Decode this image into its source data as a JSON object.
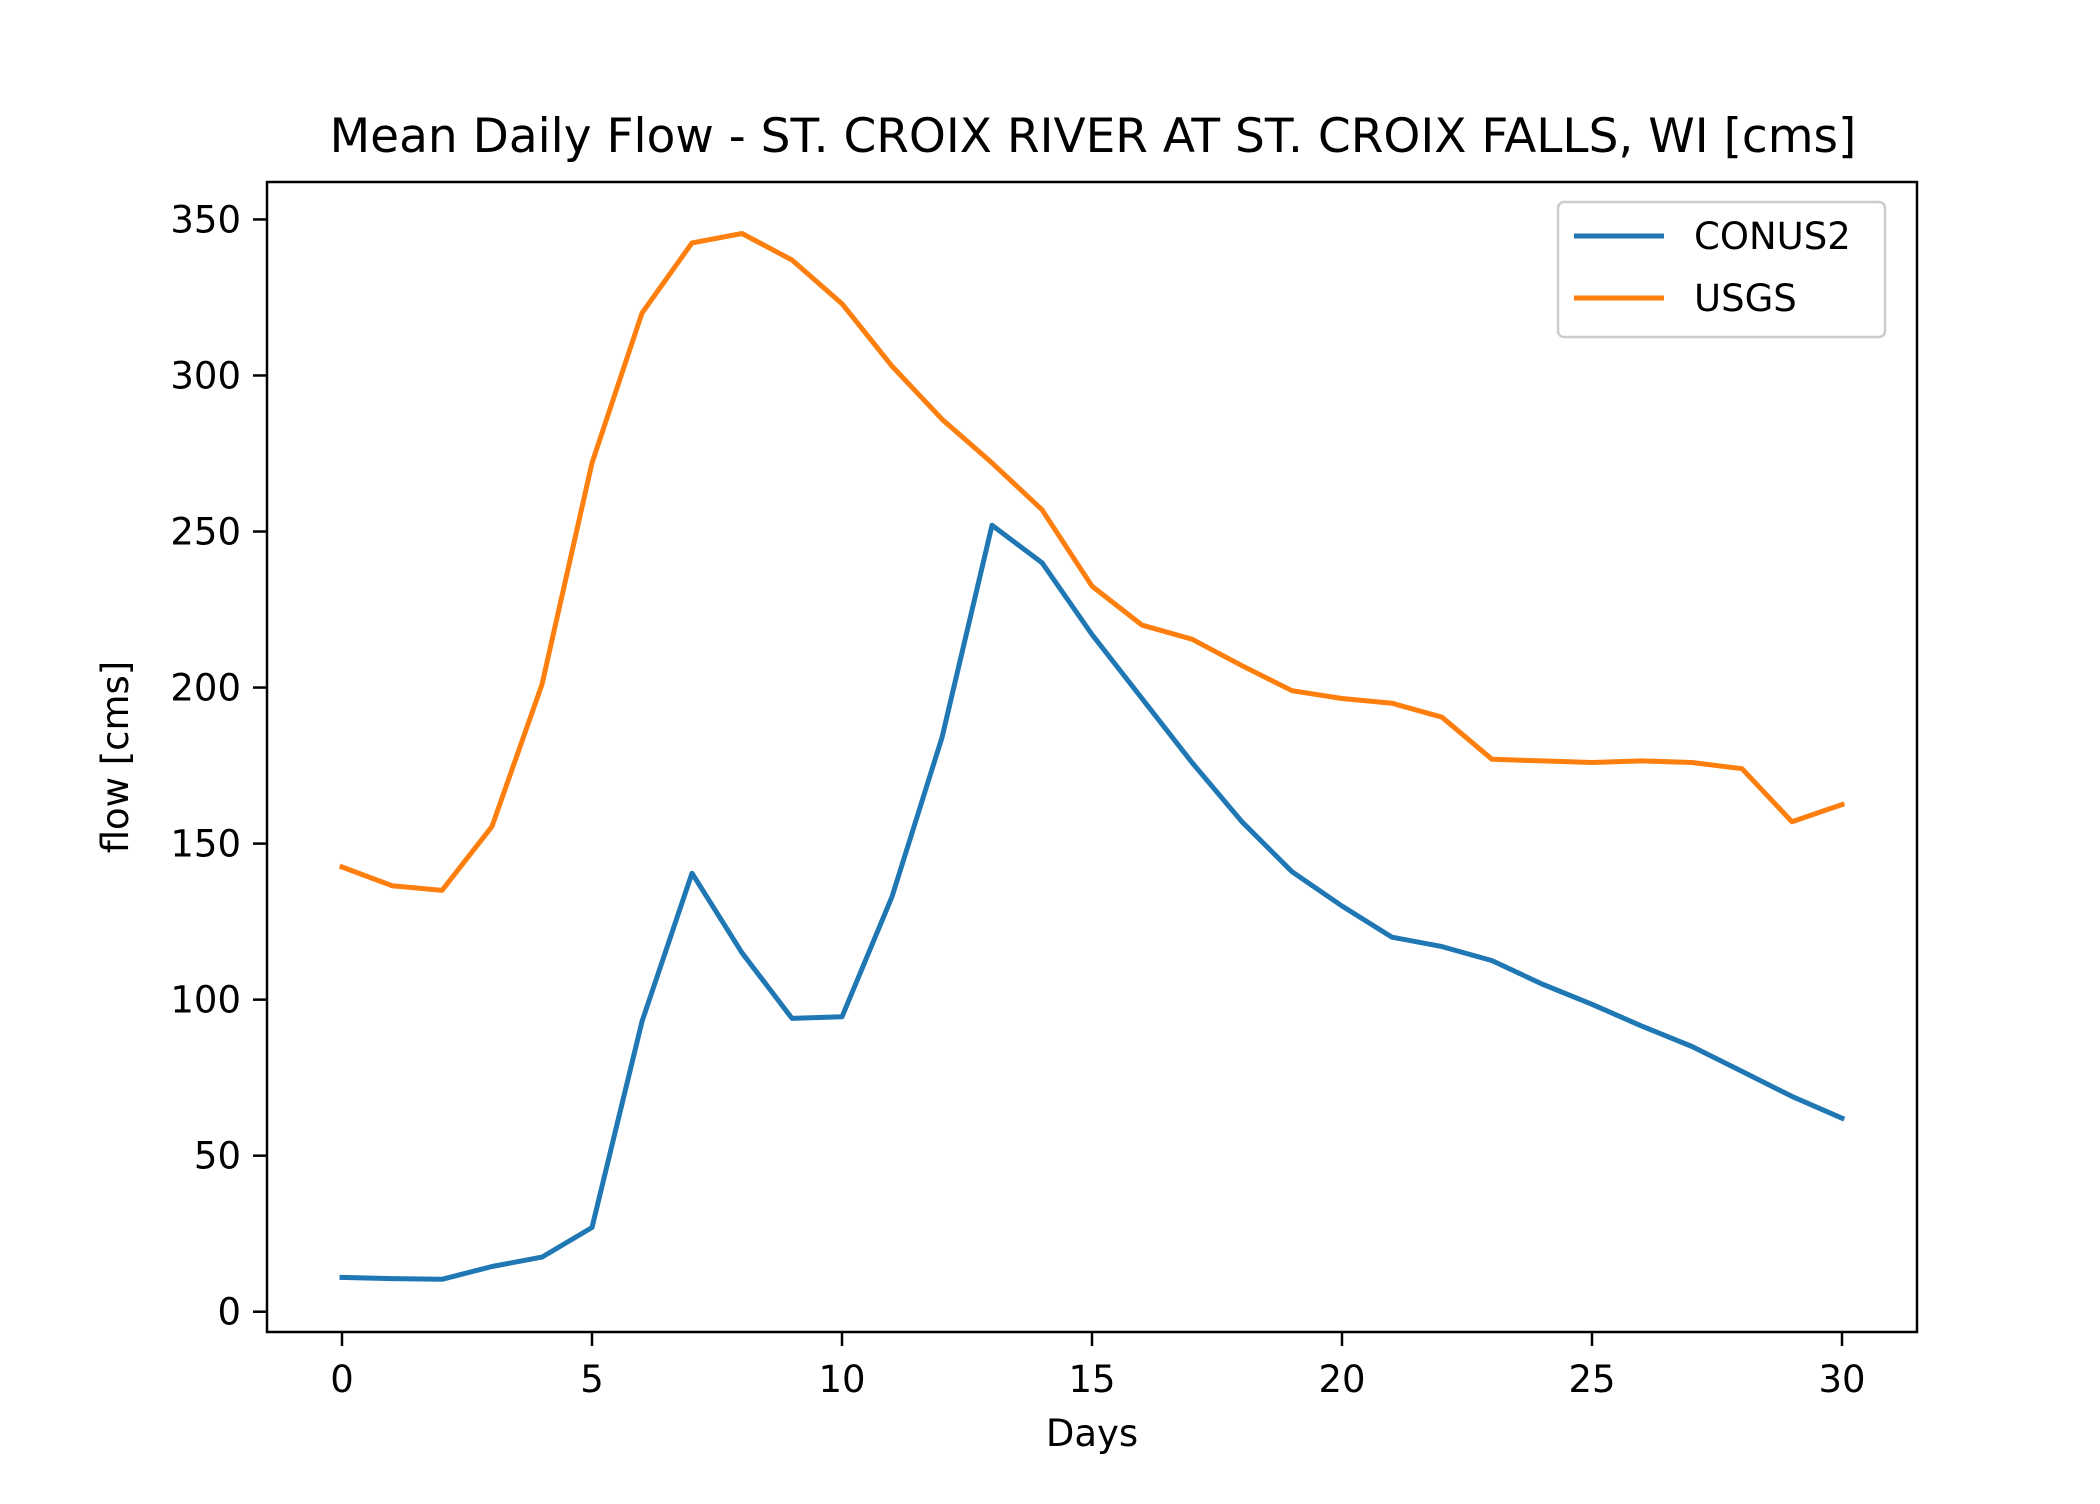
{
  "chart_data": {
    "type": "line",
    "title": "Mean Daily Flow - ST. CROIX RIVER AT ST. CROIX FALLS, WI [cms]",
    "xlabel": "Days",
    "ylabel": "flow [cms]",
    "xlim": [
      -1.5,
      31.5
    ],
    "ylim": [
      -6.5,
      362
    ],
    "xticks": [
      0,
      5,
      10,
      15,
      20,
      25,
      30
    ],
    "xtick_labels": [
      "0",
      "5",
      "10",
      "15",
      "20",
      "25",
      "30"
    ],
    "yticks": [
      0,
      50,
      100,
      150,
      200,
      250,
      300,
      350
    ],
    "ytick_labels": [
      "0",
      "50",
      "100",
      "150",
      "200",
      "250",
      "300",
      "350"
    ],
    "grid": false,
    "legend_position": "top-right",
    "x": [
      0,
      1,
      2,
      3,
      4,
      5,
      6,
      7,
      8,
      9,
      10,
      11,
      12,
      13,
      14,
      15,
      16,
      17,
      18,
      19,
      20,
      21,
      22,
      23,
      24,
      25,
      26,
      27,
      28,
      29,
      30
    ],
    "series": [
      {
        "name": "CONUS2",
        "color": "#1f77b4",
        "values": [
          11,
          10.6,
          10.4,
          14.5,
          17.5,
          27,
          93,
          140.5,
          115,
          94,
          94.5,
          133,
          184,
          252,
          240,
          217,
          196.5,
          176,
          157,
          141,
          130,
          120,
          117,
          112.5,
          105,
          98.5,
          91.5,
          85,
          77,
          69,
          62
        ]
      },
      {
        "name": "USGS",
        "color": "#ff7f0e",
        "values": [
          142.5,
          136.5,
          135,
          155.5,
          201,
          272,
          320,
          342.5,
          345.5,
          337,
          323,
          303,
          286,
          272,
          257,
          232.5,
          220,
          215.5,
          207,
          199,
          196.5,
          195,
          190.5,
          177,
          176.5,
          176,
          176.5,
          176,
          174,
          157,
          162.5
        ]
      }
    ]
  }
}
